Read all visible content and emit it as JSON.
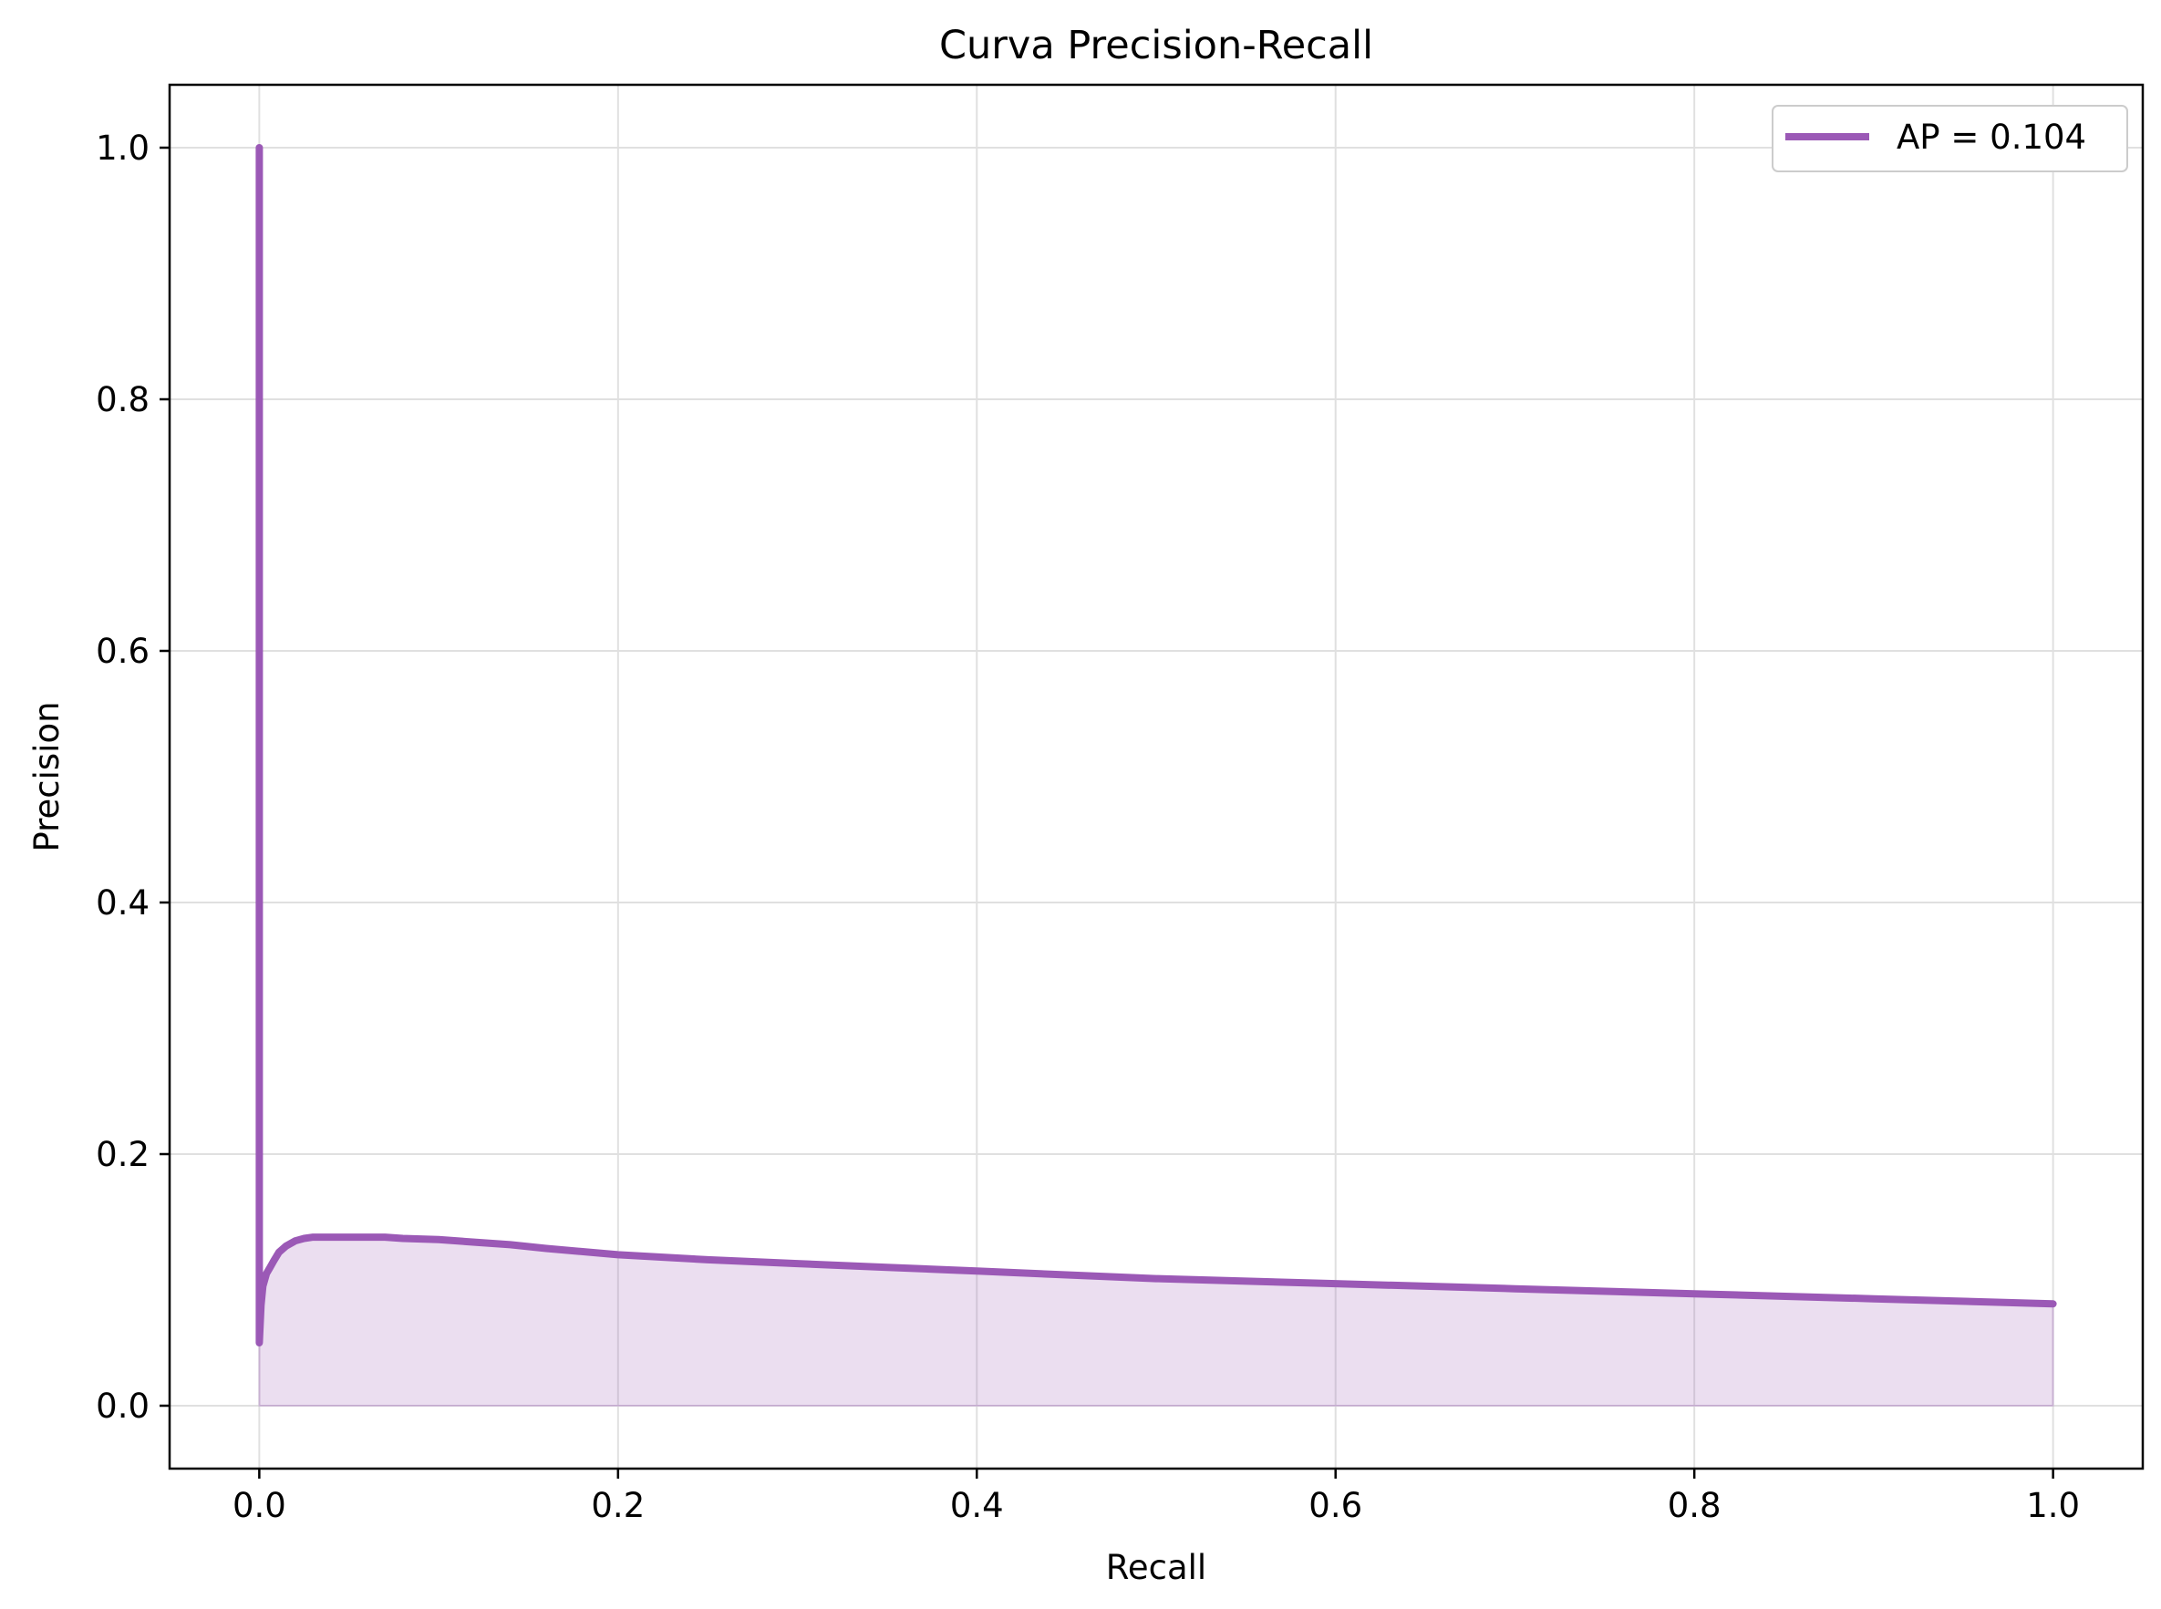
{
  "chart_data": {
    "type": "area",
    "title": "Curva Precision-Recall",
    "xlabel": "Recall",
    "ylabel": "Precision",
    "xlim": [
      -0.05,
      1.05
    ],
    "ylim": [
      -0.05,
      1.05
    ],
    "xticks": [
      0.0,
      0.2,
      0.4,
      0.6,
      0.8,
      1.0
    ],
    "yticks": [
      0.0,
      0.2,
      0.4,
      0.6,
      0.8,
      1.0
    ],
    "xtick_labels": [
      "0.0",
      "0.2",
      "0.4",
      "0.6",
      "0.8",
      "1.0"
    ],
    "ytick_labels": [
      "0.0",
      "0.2",
      "0.4",
      "0.6",
      "0.8",
      "1.0"
    ],
    "grid": true,
    "legend_position": "top-right",
    "colors": {
      "line": "#9b59b6",
      "fill": "#9b59b6",
      "grid": "#e0e0e0",
      "axes": "#000000"
    },
    "series": [
      {
        "name": "AP = 0.104",
        "x": [
          0.0,
          0.0,
          0.0,
          0.0,
          0.001,
          0.002,
          0.004,
          0.006,
          0.008,
          0.011,
          0.015,
          0.02,
          0.025,
          0.03,
          0.04,
          0.05,
          0.06,
          0.07,
          0.08,
          0.1,
          0.12,
          0.14,
          0.16,
          0.2,
          0.25,
          0.3,
          0.35,
          0.4,
          0.5,
          0.6,
          0.7,
          0.8,
          0.9,
          1.0
        ],
        "y": [
          1.0,
          0.5,
          0.07,
          0.05,
          0.08,
          0.095,
          0.105,
          0.11,
          0.115,
          0.122,
          0.127,
          0.131,
          0.133,
          0.134,
          0.134,
          0.134,
          0.134,
          0.134,
          0.133,
          0.132,
          0.13,
          0.128,
          0.125,
          0.12,
          0.116,
          0.113,
          0.11,
          0.107,
          0.101,
          0.097,
          0.093,
          0.089,
          0.085,
          0.081
        ]
      }
    ]
  }
}
